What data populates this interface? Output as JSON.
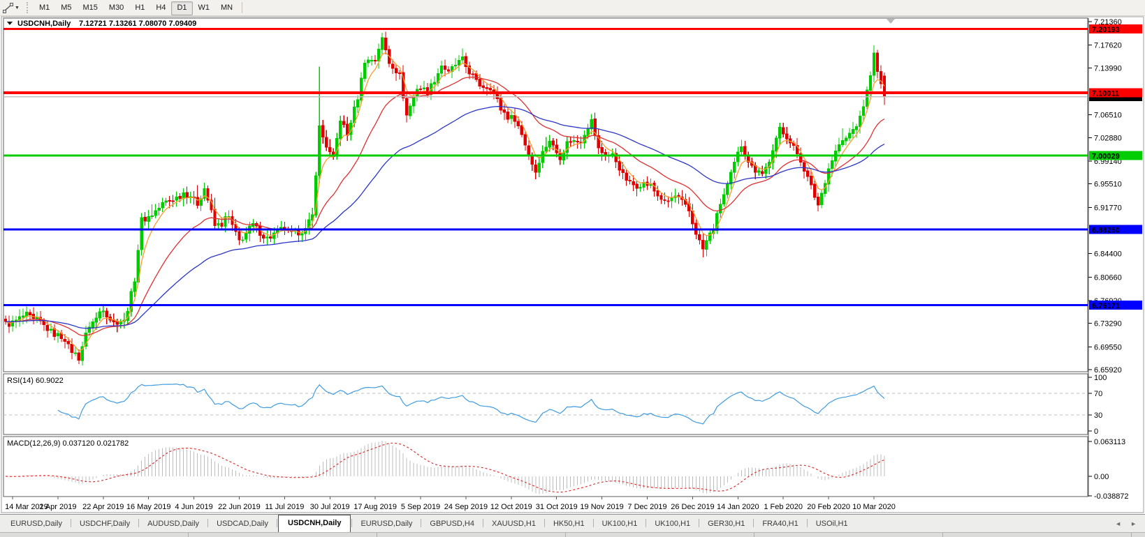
{
  "toolbar": {
    "timeframes": [
      "M1",
      "M5",
      "M15",
      "M30",
      "H1",
      "H4",
      "D1",
      "W1",
      "MN"
    ],
    "active": "D1"
  },
  "chart": {
    "symbol_title": "USDCNH,Daily",
    "ohlc": {
      "open": "7.12721",
      "high": "7.13261",
      "low": "7.08070",
      "close": "7.09409"
    }
  },
  "price_axis": {
    "max": 7.2136,
    "min": 6.6592,
    "ticks": [
      "7.21360",
      "7.17620",
      "7.13990",
      "7.06510",
      "7.02880",
      "6.99140",
      "6.95510",
      "6.91770",
      "6.84400",
      "6.80660",
      "6.76920",
      "6.73290",
      "6.69550",
      "6.65920"
    ],
    "labels": [
      {
        "value": "7.09409",
        "bg": "#000000",
        "fg": "#ffffff",
        "role": "current-price"
      },
      {
        "value": "7.20193",
        "bg": "#ff0000",
        "fg": "#ffffff",
        "role": "resistance"
      },
      {
        "value": "7.10011",
        "bg": "#ff0000",
        "fg": "#ffffff",
        "role": "resistance"
      },
      {
        "value": "7.00029",
        "bg": "#00cc00",
        "fg": "#ffffff",
        "role": "support"
      },
      {
        "value": "6.88250",
        "bg": "#0000ff",
        "fg": "#ffffff",
        "role": "support"
      },
      {
        "value": "6.76171",
        "bg": "#0000ff",
        "fg": "#ffffff",
        "role": "support"
      }
    ]
  },
  "time_axis": {
    "dates": [
      "14 Mar 2019",
      "2 Apr 2019",
      "22 Apr 2019",
      "16 May 2019",
      "4 Jun 2019",
      "22 Jun 2019",
      "11 Jul 2019",
      "30 Jul 2019",
      "17 Aug 2019",
      "5 Sep 2019",
      "24 Sep 2019",
      "12 Oct 2019",
      "31 Oct 2019",
      "19 Nov 2019",
      "7 Dec 2019",
      "26 Dec 2019",
      "14 Jan 2020",
      "1 Feb 2020",
      "20 Feb 2020",
      "10 Mar 2020"
    ],
    "start_bar": 2,
    "step_bars": 13
  },
  "chart_data": {
    "type": "candlestick",
    "symbol": "USDCNH",
    "timeframe": "Daily",
    "bars": 253,
    "ylim": [
      6.6592,
      7.2136
    ],
    "price_keypoints": [
      [
        0,
        6.735
      ],
      [
        6,
        6.742
      ],
      [
        12,
        6.728
      ],
      [
        18,
        6.7
      ],
      [
        21,
        6.676
      ],
      [
        24,
        6.728
      ],
      [
        28,
        6.76
      ],
      [
        31,
        6.735
      ],
      [
        34,
        6.732
      ],
      [
        37,
        6.8
      ],
      [
        39,
        6.895
      ],
      [
        43,
        6.915
      ],
      [
        47,
        6.925
      ],
      [
        51,
        6.945
      ],
      [
        55,
        6.928
      ],
      [
        57,
        6.948
      ],
      [
        60,
        6.885
      ],
      [
        64,
        6.9
      ],
      [
        67,
        6.868
      ],
      [
        71,
        6.886
      ],
      [
        75,
        6.872
      ],
      [
        80,
        6.88
      ],
      [
        86,
        6.878
      ],
      [
        88,
        6.902
      ],
      [
        90,
        7.045
      ],
      [
        92,
        7.02
      ],
      [
        94,
        6.995
      ],
      [
        96,
        7.055
      ],
      [
        98,
        7.03
      ],
      [
        101,
        7.095
      ],
      [
        103,
        7.155
      ],
      [
        106,
        7.15
      ],
      [
        108,
        7.185
      ],
      [
        110,
        7.145
      ],
      [
        113,
        7.13
      ],
      [
        115,
        7.068
      ],
      [
        118,
        7.108
      ],
      [
        121,
        7.098
      ],
      [
        125,
        7.148
      ],
      [
        127,
        7.128
      ],
      [
        131,
        7.155
      ],
      [
        135,
        7.12
      ],
      [
        139,
        7.108
      ],
      [
        142,
        7.072
      ],
      [
        146,
        7.06
      ],
      [
        150,
        7.0
      ],
      [
        152,
        6.978
      ],
      [
        156,
        7.024
      ],
      [
        159,
        7.002
      ],
      [
        162,
        7.028
      ],
      [
        165,
        7.024
      ],
      [
        168,
        7.052
      ],
      [
        170,
        7.012
      ],
      [
        174,
        7.0
      ],
      [
        177,
        6.966
      ],
      [
        181,
        6.95
      ],
      [
        185,
        6.954
      ],
      [
        189,
        6.928
      ],
      [
        192,
        6.932
      ],
      [
        196,
        6.914
      ],
      [
        199,
        6.862
      ],
      [
        200,
        6.848
      ],
      [
        203,
        6.884
      ],
      [
        205,
        6.928
      ],
      [
        208,
        6.968
      ],
      [
        211,
        7.014
      ],
      [
        214,
        6.986
      ],
      [
        217,
        6.972
      ],
      [
        220,
        7.008
      ],
      [
        222,
        7.042
      ],
      [
        225,
        7.02
      ],
      [
        228,
        6.99
      ],
      [
        231,
        6.954
      ],
      [
        233,
        6.924
      ],
      [
        236,
        6.976
      ],
      [
        239,
        7.018
      ],
      [
        242,
        7.038
      ],
      [
        245,
        7.06
      ],
      [
        247,
        7.098
      ],
      [
        249,
        7.158
      ],
      [
        250,
        7.132
      ],
      [
        251,
        7.118
      ],
      [
        252,
        7.09409
      ]
    ],
    "spikes": [
      {
        "bar": 21,
        "low": 6.669
      },
      {
        "bar": 90,
        "high": 7.142
      },
      {
        "bar": 108,
        "high": 7.196
      },
      {
        "bar": 168,
        "high": 7.062
      },
      {
        "bar": 200,
        "low": 6.838
      },
      {
        "bar": 233,
        "low": 6.916
      },
      {
        "bar": 249,
        "high": 7.176
      }
    ],
    "hlines": [
      {
        "price": 7.20193,
        "color": "#ff0000",
        "width": 3
      },
      {
        "price": 7.10011,
        "color": "#ff0000",
        "width": 4
      },
      {
        "price": 7.00029,
        "color": "#00cc00",
        "width": 3
      },
      {
        "price": 6.8825,
        "color": "#0000ff",
        "width": 3
      },
      {
        "price": 6.76171,
        "color": "#0000ff",
        "width": 3
      }
    ],
    "current_price": 7.09409,
    "current_price_line_color": "#c0c0c0",
    "candle_up_color": "#00cc00",
    "candle_down_color": "#e00000",
    "moving_averages": [
      {
        "period": 5,
        "color": "#ff9b2c"
      },
      {
        "period": 22,
        "color": "#e03030"
      },
      {
        "period": 55,
        "color": "#2b35c8"
      }
    ],
    "indicators": {
      "rsi": {
        "label": "RSI(14)",
        "value": "60.9022",
        "period": 14,
        "ticks": [
          "100",
          "70",
          "30",
          "0"
        ],
        "levels": [
          70,
          30
        ],
        "range": [
          0,
          100
        ],
        "color": "#3f9be0",
        "level_color": "#bcbcbc"
      },
      "macd": {
        "label": "MACD(12,26,9)",
        "values": [
          "0.037120",
          "0.021782"
        ],
        "fast": 12,
        "slow": 26,
        "signal": 9,
        "ticks": [
          "0.063113",
          "0.00",
          "-0.038872"
        ],
        "max": 0.063113,
        "min": -0.038872,
        "hist_color": "#bdbdbd",
        "signal_color": "#e03030"
      }
    }
  },
  "tab_bar": {
    "tabs": [
      {
        "label": "EURUSD,Daily",
        "active": false
      },
      {
        "label": "USDCHF,Daily",
        "active": false
      },
      {
        "label": "AUDUSD,Daily",
        "active": false
      },
      {
        "label": "USDCAD,Daily",
        "active": false
      },
      {
        "label": "USDCNH,Daily",
        "active": true
      },
      {
        "label": "EURUSD,Daily",
        "active": false
      },
      {
        "label": "GBPUSD,H4",
        "active": false
      },
      {
        "label": "XAUUSD,H1",
        "active": false
      },
      {
        "label": "HK50,H1",
        "active": false
      },
      {
        "label": "UK100,H1",
        "active": false
      },
      {
        "label": "UK100,H1",
        "active": false
      },
      {
        "label": "GER30,H1",
        "active": false
      },
      {
        "label": "FRA40,H1",
        "active": false
      },
      {
        "label": "USOil,H1",
        "active": false
      }
    ],
    "scroll_left": "◄",
    "scroll_right": "►"
  },
  "icons": {
    "one_click_trading": "▼",
    "toolbar_dropdown": "▼"
  }
}
